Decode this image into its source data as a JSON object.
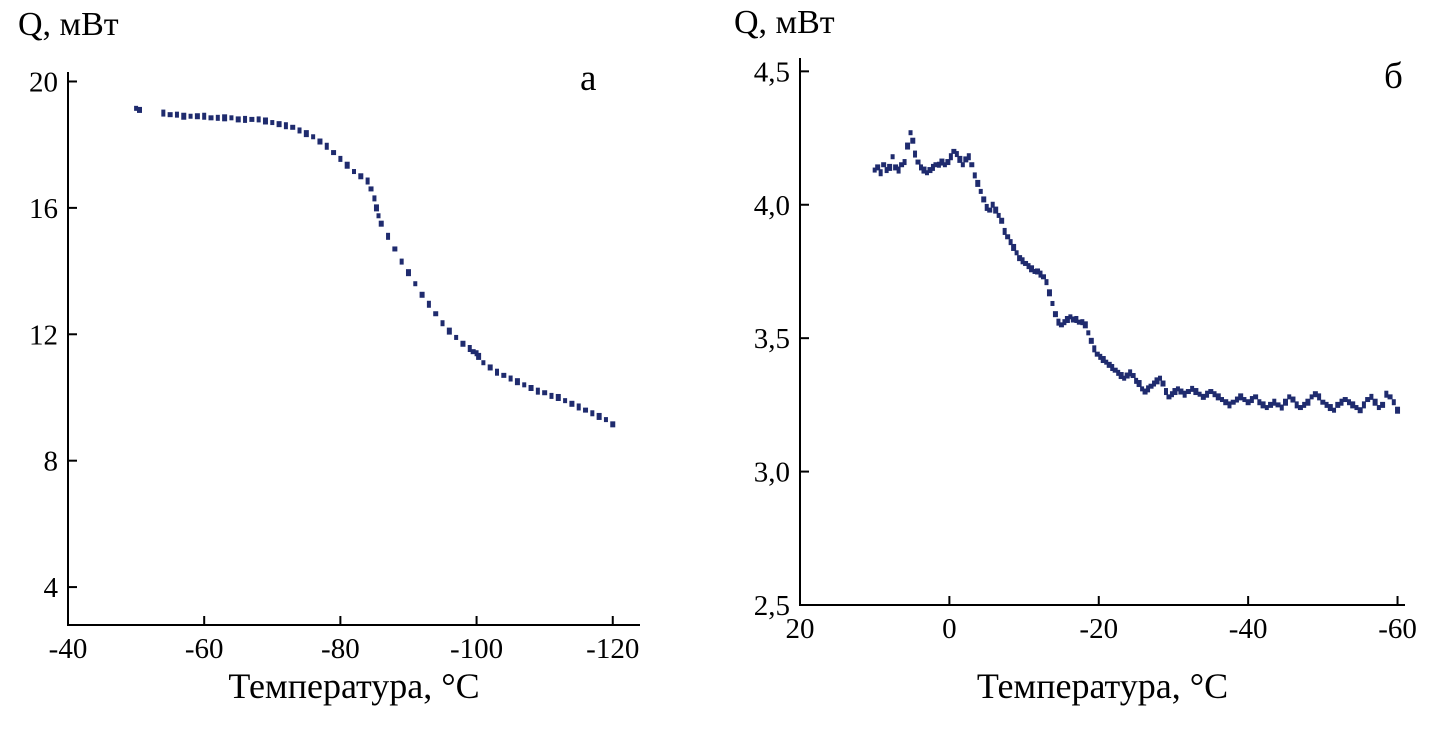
{
  "figure": {
    "background": "#ffffff",
    "axis_color": "#000000"
  },
  "chart_data": [
    {
      "type": "scatter",
      "panel_label": "а",
      "title": "",
      "ylabel": "Q, мВт",
      "xlabel": "Температура, °C",
      "marker_color": "#1f2b6e",
      "grid": false,
      "legend": "none",
      "xlim": [
        -40,
        -124
      ],
      "ylim": [
        2.8,
        20.3
      ],
      "x_ticks": [
        -40,
        -60,
        -80,
        -100,
        -120
      ],
      "x_tick_labels": [
        "-40",
        "-60",
        "-80",
        "-100",
        "-120"
      ],
      "y_ticks": [
        4,
        8,
        12,
        16,
        20
      ],
      "y_tick_labels": [
        "4",
        "8",
        "12",
        "16",
        "20"
      ],
      "points": [
        [
          -50,
          19.15
        ],
        [
          -50.5,
          19.1
        ],
        [
          -54,
          19.0
        ],
        [
          -55,
          18.95
        ],
        [
          -56,
          18.95
        ],
        [
          -57,
          18.9
        ],
        [
          -58,
          18.9
        ],
        [
          -59,
          18.9
        ],
        [
          -60,
          18.9
        ],
        [
          -61,
          18.85
        ],
        [
          -62,
          18.85
        ],
        [
          -63,
          18.85
        ],
        [
          -64,
          18.85
        ],
        [
          -65,
          18.8
        ],
        [
          -66,
          18.8
        ],
        [
          -67,
          18.8
        ],
        [
          -68,
          18.8
        ],
        [
          -69,
          18.75
        ],
        [
          -70,
          18.7
        ],
        [
          -71,
          18.65
        ],
        [
          -72,
          18.6
        ],
        [
          -73,
          18.55
        ],
        [
          -74,
          18.45
        ],
        [
          -75,
          18.35
        ],
        [
          -76,
          18.25
        ],
        [
          -77,
          18.1
        ],
        [
          -78,
          17.95
        ],
        [
          -79,
          17.75
        ],
        [
          -80,
          17.55
        ],
        [
          -81,
          17.35
        ],
        [
          -82,
          17.15
        ],
        [
          -83,
          17.0
        ],
        [
          -84,
          16.85
        ],
        [
          -84.5,
          16.6
        ],
        [
          -85,
          16.3
        ],
        [
          -85.3,
          16.0
        ],
        [
          -85.6,
          15.75
        ],
        [
          -86,
          15.5
        ],
        [
          -87,
          15.1
        ],
        [
          -88,
          14.7
        ],
        [
          -89,
          14.3
        ],
        [
          -90,
          13.95
        ],
        [
          -91,
          13.6
        ],
        [
          -92,
          13.25
        ],
        [
          -93,
          12.95
        ],
        [
          -94,
          12.65
        ],
        [
          -95,
          12.35
        ],
        [
          -96,
          12.1
        ],
        [
          -97,
          11.9
        ],
        [
          -98,
          11.7
        ],
        [
          -99,
          11.55
        ],
        [
          -99.5,
          11.45
        ],
        [
          -100,
          11.4
        ],
        [
          -100.3,
          11.3
        ],
        [
          -101,
          11.1
        ],
        [
          -102,
          10.95
        ],
        [
          -103,
          10.8
        ],
        [
          -104,
          10.7
        ],
        [
          -105,
          10.6
        ],
        [
          -106,
          10.5
        ],
        [
          -107,
          10.4
        ],
        [
          -108,
          10.3
        ],
        [
          -109,
          10.2
        ],
        [
          -110,
          10.15
        ],
        [
          -111,
          10.05
        ],
        [
          -112,
          10.0
        ],
        [
          -113,
          9.9
        ],
        [
          -114,
          9.8
        ],
        [
          -115,
          9.7
        ],
        [
          -116,
          9.6
        ],
        [
          -117,
          9.5
        ],
        [
          -118,
          9.4
        ],
        [
          -119,
          9.3
        ],
        [
          -120,
          9.15
        ]
      ]
    },
    {
      "type": "scatter",
      "panel_label": "б",
      "title": "",
      "ylabel": "Q, мВт",
      "xlabel": "Температура, °C",
      "marker_color": "#1f2b6e",
      "grid": false,
      "legend": "none",
      "xlim": [
        20,
        -61
      ],
      "ylim": [
        2.5,
        4.55
      ],
      "x_ticks": [
        20,
        0,
        -20,
        -40,
        -60
      ],
      "x_tick_labels": [
        "20",
        "0",
        "-20",
        "-40",
        "-60"
      ],
      "y_ticks": [
        2.5,
        3.0,
        3.5,
        4.0,
        4.5
      ],
      "y_tick_labels": [
        "2,5",
        "3,0",
        "3,5",
        "4,0",
        "4,5"
      ],
      "points": [
        [
          10,
          4.13
        ],
        [
          9.6,
          4.14
        ],
        [
          9.2,
          4.12
        ],
        [
          8.8,
          4.15
        ],
        [
          8.4,
          4.13
        ],
        [
          8,
          4.14
        ],
        [
          7.6,
          4.18
        ],
        [
          7.2,
          4.14
        ],
        [
          6.8,
          4.13
        ],
        [
          6.4,
          4.15
        ],
        [
          6,
          4.16
        ],
        [
          5.6,
          4.22
        ],
        [
          5.2,
          4.27
        ],
        [
          4.9,
          4.24
        ],
        [
          4.6,
          4.19
        ],
        [
          4.2,
          4.16
        ],
        [
          3.8,
          4.14
        ],
        [
          3.4,
          4.13
        ],
        [
          3,
          4.12
        ],
        [
          2.6,
          4.13
        ],
        [
          2.2,
          4.14
        ],
        [
          1.8,
          4.15
        ],
        [
          1.4,
          4.15
        ],
        [
          1,
          4.16
        ],
        [
          0.6,
          4.15
        ],
        [
          0.2,
          4.16
        ],
        [
          -0.2,
          4.18
        ],
        [
          -0.6,
          4.2
        ],
        [
          -1,
          4.19
        ],
        [
          -1.4,
          4.17
        ],
        [
          -1.8,
          4.15
        ],
        [
          -2.2,
          4.17
        ],
        [
          -2.6,
          4.18
        ],
        [
          -3,
          4.15
        ],
        [
          -3.4,
          4.11
        ],
        [
          -3.8,
          4.08
        ],
        [
          -4.2,
          4.05
        ],
        [
          -4.6,
          4.02
        ],
        [
          -5,
          3.99
        ],
        [
          -5.4,
          3.98
        ],
        [
          -5.8,
          4.0
        ],
        [
          -6.2,
          3.98
        ],
        [
          -6.6,
          3.96
        ],
        [
          -7,
          3.94
        ],
        [
          -7.4,
          3.9
        ],
        [
          -7.8,
          3.88
        ],
        [
          -8.2,
          3.86
        ],
        [
          -8.6,
          3.84
        ],
        [
          -9,
          3.82
        ],
        [
          -9.4,
          3.8
        ],
        [
          -9.8,
          3.79
        ],
        [
          -10.2,
          3.78
        ],
        [
          -10.6,
          3.77
        ],
        [
          -11,
          3.76
        ],
        [
          -11.4,
          3.75
        ],
        [
          -11.8,
          3.75
        ],
        [
          -12.2,
          3.74
        ],
        [
          -12.6,
          3.73
        ],
        [
          -13,
          3.71
        ],
        [
          -13.4,
          3.67
        ],
        [
          -13.8,
          3.63
        ],
        [
          -14.2,
          3.59
        ],
        [
          -14.6,
          3.56
        ],
        [
          -15,
          3.55
        ],
        [
          -15.4,
          3.56
        ],
        [
          -15.8,
          3.57
        ],
        [
          -16.2,
          3.58
        ],
        [
          -16.6,
          3.57
        ],
        [
          -17,
          3.57
        ],
        [
          -17.4,
          3.56
        ],
        [
          -17.8,
          3.56
        ],
        [
          -18.2,
          3.55
        ],
        [
          -18.6,
          3.52
        ],
        [
          -19,
          3.49
        ],
        [
          -19.4,
          3.46
        ],
        [
          -19.8,
          3.44
        ],
        [
          -20.2,
          3.43
        ],
        [
          -20.6,
          3.42
        ],
        [
          -21,
          3.41
        ],
        [
          -21.4,
          3.4
        ],
        [
          -21.8,
          3.39
        ],
        [
          -22.2,
          3.38
        ],
        [
          -22.6,
          3.37
        ],
        [
          -23,
          3.36
        ],
        [
          -23.4,
          3.35
        ],
        [
          -23.8,
          3.36
        ],
        [
          -24.2,
          3.37
        ],
        [
          -24.6,
          3.36
        ],
        [
          -25,
          3.34
        ],
        [
          -25.4,
          3.33
        ],
        [
          -25.8,
          3.31
        ],
        [
          -26.2,
          3.3
        ],
        [
          -26.6,
          3.31
        ],
        [
          -27,
          3.32
        ],
        [
          -27.4,
          3.33
        ],
        [
          -27.8,
          3.34
        ],
        [
          -28.2,
          3.35
        ],
        [
          -28.6,
          3.33
        ],
        [
          -29,
          3.3
        ],
        [
          -29.4,
          3.28
        ],
        [
          -29.8,
          3.29
        ],
        [
          -30.2,
          3.3
        ],
        [
          -30.6,
          3.31
        ],
        [
          -31,
          3.3
        ],
        [
          -31.5,
          3.29
        ],
        [
          -32,
          3.3
        ],
        [
          -32.5,
          3.31
        ],
        [
          -33,
          3.3
        ],
        [
          -33.5,
          3.29
        ],
        [
          -34,
          3.28
        ],
        [
          -34.5,
          3.29
        ],
        [
          -35,
          3.3
        ],
        [
          -35.5,
          3.29
        ],
        [
          -36,
          3.28
        ],
        [
          -36.5,
          3.27
        ],
        [
          -37,
          3.26
        ],
        [
          -37.5,
          3.25
        ],
        [
          -38,
          3.26
        ],
        [
          -38.5,
          3.27
        ],
        [
          -39,
          3.28
        ],
        [
          -39.5,
          3.27
        ],
        [
          -40,
          3.26
        ],
        [
          -40.5,
          3.27
        ],
        [
          -41,
          3.28
        ],
        [
          -41.5,
          3.26
        ],
        [
          -42,
          3.25
        ],
        [
          -42.5,
          3.24
        ],
        [
          -43,
          3.25
        ],
        [
          -43.5,
          3.26
        ],
        [
          -44,
          3.25
        ],
        [
          -44.5,
          3.24
        ],
        [
          -45,
          3.26
        ],
        [
          -45.5,
          3.28
        ],
        [
          -46,
          3.27
        ],
        [
          -46.5,
          3.25
        ],
        [
          -47,
          3.24
        ],
        [
          -47.5,
          3.25
        ],
        [
          -48,
          3.26
        ],
        [
          -48.5,
          3.28
        ],
        [
          -49,
          3.29
        ],
        [
          -49.5,
          3.28
        ],
        [
          -50,
          3.26
        ],
        [
          -50.5,
          3.25
        ],
        [
          -51,
          3.24
        ],
        [
          -51.5,
          3.23
        ],
        [
          -52,
          3.25
        ],
        [
          -52.5,
          3.26
        ],
        [
          -53,
          3.27
        ],
        [
          -53.5,
          3.26
        ],
        [
          -54,
          3.25
        ],
        [
          -54.5,
          3.24
        ],
        [
          -55,
          3.23
        ],
        [
          -55.5,
          3.25
        ],
        [
          -56,
          3.27
        ],
        [
          -56.5,
          3.28
        ],
        [
          -57,
          3.26
        ],
        [
          -57.5,
          3.24
        ],
        [
          -58,
          3.25
        ],
        [
          -58.5,
          3.29
        ],
        [
          -59,
          3.28
        ],
        [
          -59.5,
          3.26
        ],
        [
          -60,
          3.23
        ]
      ]
    }
  ]
}
